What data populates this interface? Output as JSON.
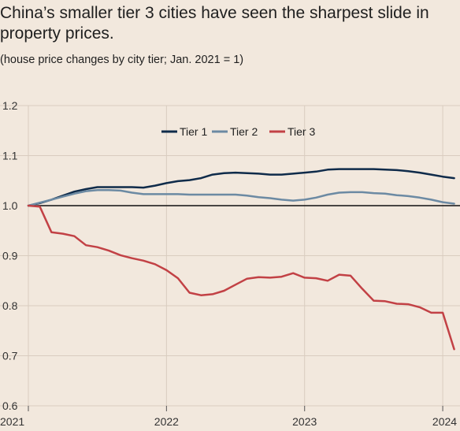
{
  "title": "China’s smaller tier 3 cities have seen the sharpest slide in property prices.",
  "subtitle": "(house price changes by city tier; Jan. 2021 = 1)",
  "colors": {
    "background": "#f2e8dd",
    "tier1": "#0f2b4a",
    "tier2": "#6c8aa3",
    "tier3": "#c24145",
    "grid": "#d9ccbf",
    "baseline": "#111111"
  },
  "chart_data": {
    "type": "line",
    "title": "",
    "xlabel": "",
    "ylabel": "",
    "ylim": [
      0.6,
      1.2
    ],
    "yticks": [
      "0.6",
      "0.7",
      "0.8",
      "0.9",
      "1.0",
      "1.1",
      "1.2"
    ],
    "xlim": [
      2021.0,
      2024.125
    ],
    "xticks": [
      "2021",
      "2022",
      "2023",
      "2024"
    ],
    "grid": true,
    "legend_position": "top-center",
    "series": [
      {
        "name": "Tier 1",
        "color": "#0f2b4a",
        "x": [
          2021.0,
          2021.083,
          2021.167,
          2021.25,
          2021.333,
          2021.417,
          2021.5,
          2021.583,
          2021.667,
          2021.75,
          2021.833,
          2021.917,
          2022.0,
          2022.083,
          2022.167,
          2022.25,
          2022.333,
          2022.417,
          2022.5,
          2022.583,
          2022.667,
          2022.75,
          2022.833,
          2022.917,
          2023.0,
          2023.083,
          2023.167,
          2023.25,
          2023.333,
          2023.417,
          2023.5,
          2023.583,
          2023.667,
          2023.75,
          2023.833,
          2023.917,
          2024.0,
          2024.083
        ],
        "y": [
          1.0,
          1.005,
          1.012,
          1.02,
          1.028,
          1.033,
          1.037,
          1.037,
          1.037,
          1.037,
          1.036,
          1.04,
          1.045,
          1.049,
          1.051,
          1.055,
          1.062,
          1.065,
          1.066,
          1.065,
          1.064,
          1.062,
          1.062,
          1.064,
          1.066,
          1.068,
          1.072,
          1.073,
          1.073,
          1.073,
          1.073,
          1.072,
          1.071,
          1.069,
          1.066,
          1.062,
          1.058,
          1.055
        ]
      },
      {
        "name": "Tier 2",
        "color": "#6c8aa3",
        "x": [
          2021.0,
          2021.083,
          2021.167,
          2021.25,
          2021.333,
          2021.417,
          2021.5,
          2021.583,
          2021.667,
          2021.75,
          2021.833,
          2021.917,
          2022.0,
          2022.083,
          2022.167,
          2022.25,
          2022.333,
          2022.417,
          2022.5,
          2022.583,
          2022.667,
          2022.75,
          2022.833,
          2022.917,
          2023.0,
          2023.083,
          2023.167,
          2023.25,
          2023.333,
          2023.417,
          2023.5,
          2023.583,
          2023.667,
          2023.75,
          2023.833,
          2023.917,
          2024.0,
          2024.083
        ],
        "y": [
          1.0,
          1.006,
          1.012,
          1.018,
          1.024,
          1.029,
          1.031,
          1.031,
          1.03,
          1.026,
          1.023,
          1.023,
          1.023,
          1.023,
          1.022,
          1.022,
          1.022,
          1.022,
          1.022,
          1.02,
          1.017,
          1.015,
          1.012,
          1.01,
          1.012,
          1.016,
          1.022,
          1.026,
          1.027,
          1.027,
          1.025,
          1.024,
          1.021,
          1.019,
          1.016,
          1.012,
          1.007,
          1.004
        ]
      },
      {
        "name": "Tier 3",
        "color": "#c24145",
        "x": [
          2021.0,
          2021.083,
          2021.167,
          2021.25,
          2021.333,
          2021.417,
          2021.5,
          2021.583,
          2021.667,
          2021.75,
          2021.833,
          2021.917,
          2022.0,
          2022.083,
          2022.167,
          2022.25,
          2022.333,
          2022.417,
          2022.5,
          2022.583,
          2022.667,
          2022.75,
          2022.833,
          2022.917,
          2023.0,
          2023.083,
          2023.167,
          2023.25,
          2023.333,
          2023.417,
          2023.5,
          2023.583,
          2023.667,
          2023.75,
          2023.833,
          2023.917,
          2024.0,
          2024.083
        ],
        "y": [
          1.0,
          0.998,
          0.947,
          0.944,
          0.939,
          0.921,
          0.917,
          0.91,
          0.901,
          0.895,
          0.89,
          0.883,
          0.871,
          0.855,
          0.826,
          0.821,
          0.823,
          0.83,
          0.842,
          0.854,
          0.857,
          0.856,
          0.858,
          0.865,
          0.856,
          0.855,
          0.85,
          0.862,
          0.86,
          0.834,
          0.81,
          0.809,
          0.804,
          0.803,
          0.797,
          0.786,
          0.786,
          0.713
        ]
      }
    ]
  }
}
